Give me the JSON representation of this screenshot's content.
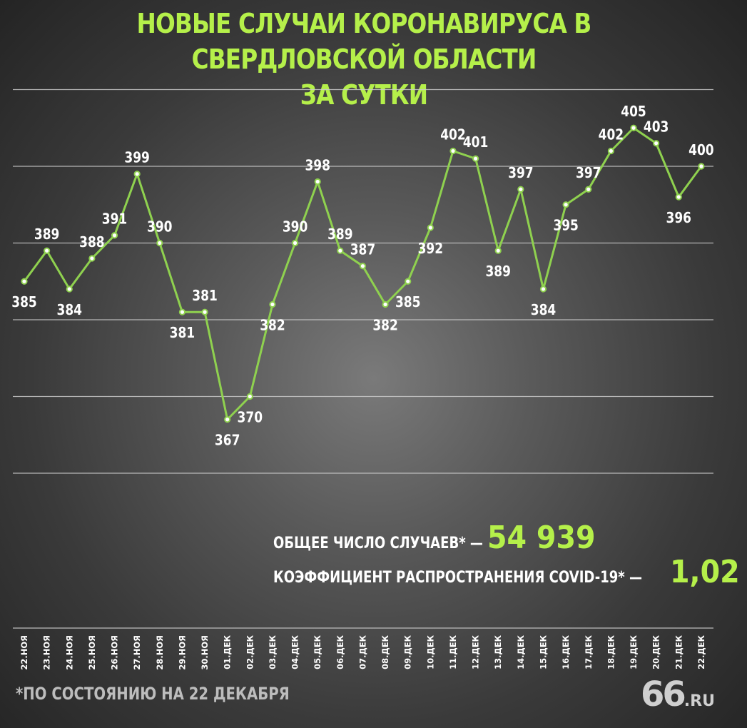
{
  "title_line1": "НОВЫЕ СЛУЧАИ КОРОНАВИРУСА В СВЕРДЛОВСКОЙ ОБЛАСТИ",
  "title_line2": "ЗА СУТКИ",
  "total_label": "ОБЩЕЕ ЧИСЛО СЛУЧАЕВ* —",
  "total_value": "54 939",
  "ratio_label": "КОЭФФИЦИЕНТ РАСПРОСТРАНЕНИЯ COVID-19* —",
  "ratio_value": "1,02",
  "footnote": "*ПО СОСТОЯНИЮ НА 22 ДЕКАБРЯ",
  "logo_big": "66",
  "logo_small": ".RU",
  "colors": {
    "accent": "#b5f04a",
    "line": "#8fd14f",
    "grid": "#cccccc"
  },
  "chart_data": {
    "type": "line",
    "title": "НОВЫЕ СЛУЧАИ КОРОНАВИРУСА В СВЕРДЛОВСКОЙ ОБЛАСТИ ЗА СУТКИ",
    "xlabel": "",
    "ylabel": "",
    "ylim": [
      360,
      410
    ],
    "grid": true,
    "categories": [
      "22.НОЯ",
      "23.НОЯ",
      "24.НОЯ",
      "25.НОЯ",
      "26.НОЯ",
      "27.НОЯ",
      "28.НОЯ",
      "29.НОЯ",
      "30.НОЯ",
      "01.ДЕК",
      "02.ДЕК",
      "03.ДЕК",
      "04.ДЕК",
      "05.ДЕК",
      "06.ДЕК",
      "07.ДЕК",
      "08.ДЕК",
      "09.ДЕК",
      "10.ДЕК",
      "11.ДЕК",
      "12.ДЕК",
      "13.ДЕК",
      "14.ДЕК",
      "15.ДЕК",
      "16.ДЕК",
      "17.ДЕК",
      "18.ДЕК",
      "19.ДЕК",
      "20.ДЕК",
      "21.ДЕК",
      "22.ДЕК"
    ],
    "values": [
      385,
      389,
      384,
      388,
      391,
      399,
      390,
      381,
      381,
      367,
      370,
      382,
      390,
      398,
      389,
      387,
      382,
      385,
      392,
      402,
      401,
      389,
      397,
      384,
      395,
      397,
      402,
      405,
      403,
      396,
      400
    ],
    "labels_above": [
      false,
      true,
      false,
      true,
      true,
      true,
      true,
      false,
      true,
      false,
      false,
      false,
      true,
      true,
      true,
      true,
      false,
      false,
      false,
      true,
      true,
      false,
      true,
      false,
      false,
      true,
      true,
      true,
      true,
      false,
      true
    ]
  }
}
